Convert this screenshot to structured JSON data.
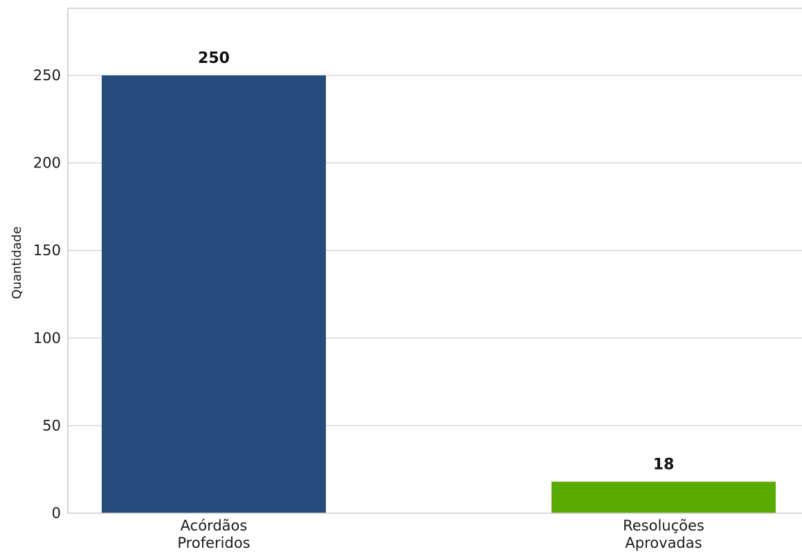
{
  "chart_data": {
    "type": "bar",
    "categories": [
      [
        "Acórdãos",
        "Proferidos"
      ],
      [
        "Resoluções",
        "Aprovadas"
      ]
    ],
    "values": [
      250,
      18
    ],
    "value_labels": [
      "250",
      "18"
    ],
    "colors": [
      "#264b7d",
      "#5aaa00"
    ],
    "title": "",
    "xlabel": "",
    "ylabel": "Quantidade",
    "ylim": [
      0,
      287.5
    ],
    "yticks": [
      0,
      50,
      100,
      150,
      200,
      250
    ],
    "ytick_labels": [
      "0",
      "50",
      "100",
      "150",
      "200",
      "250"
    ],
    "grid": true,
    "legend": null
  }
}
